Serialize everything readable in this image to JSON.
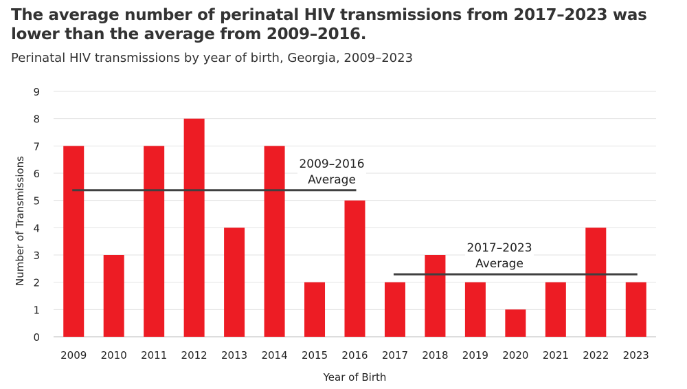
{
  "chart_data": {
    "type": "bar",
    "title": "The average number of perinatal HIV transmissions from 2017–2023 was lower than the average from 2009–2016.",
    "subtitle": "Perinatal HIV transmissions by year of birth, Georgia, 2009–2023",
    "xlabel": "Year of Birth",
    "ylabel": "Number of Transmissions",
    "ylim": [
      0,
      9
    ],
    "yticks": [
      0,
      1,
      2,
      3,
      4,
      5,
      6,
      7,
      8,
      9
    ],
    "grid": true,
    "categories": [
      "2009",
      "2010",
      "2011",
      "2012",
      "2013",
      "2014",
      "2015",
      "2016",
      "2017",
      "2018",
      "2019",
      "2020",
      "2021",
      "2022",
      "2023"
    ],
    "values": [
      7,
      3,
      7,
      8,
      4,
      7,
      2,
      5,
      2,
      3,
      2,
      1,
      2,
      4,
      2
    ],
    "bar_color": "#ED1C24",
    "averages": [
      {
        "label_line1": "2009–2016",
        "label_line2": "Average",
        "from": "2009",
        "to": "2016",
        "value": 5.375
      },
      {
        "label_line1": "2017–2023",
        "label_line2": "Average",
        "from": "2017",
        "to": "2023",
        "value": 2.29
      }
    ],
    "average_line_color": "#404040"
  }
}
